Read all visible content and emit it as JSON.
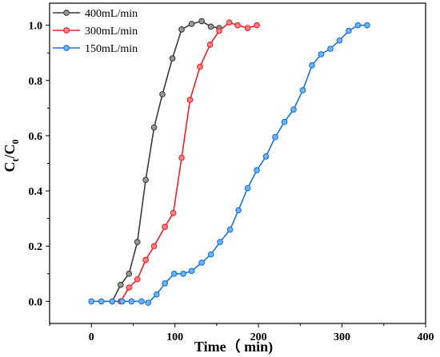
{
  "chart_data": {
    "type": "line",
    "title": "",
    "xlabel": "Time（ min)",
    "ylabel_main": "C",
    "ylabel_sub1": "t",
    "ylabel_mid": "/C",
    "ylabel_sub2": "0",
    "xlim": [
      -50,
      400
    ],
    "ylim": [
      -0.08,
      1.08
    ],
    "x_ticks": [
      0,
      100,
      200,
      300,
      400
    ],
    "y_ticks": [
      0.0,
      0.2,
      0.4,
      0.6,
      0.8,
      1.0
    ],
    "x_tick_labels": [
      "0",
      "100",
      "200",
      "300",
      "400"
    ],
    "y_tick_labels": [
      "0.0",
      "0.2",
      "0.4",
      "0.6",
      "0.8",
      "1.0"
    ],
    "grid": false,
    "legend_position": "top-left",
    "series": [
      {
        "name": "400mL/min",
        "color": "#3a3a3a",
        "fill": "#9a9a9a",
        "x": [
          25,
          35,
          45,
          55,
          65,
          75,
          85,
          97,
          108,
          120,
          132,
          143,
          153
        ],
        "y": [
          0.0,
          0.06,
          0.1,
          0.215,
          0.44,
          0.63,
          0.75,
          0.88,
          0.985,
          1.005,
          1.015,
          0.995,
          0.99
        ]
      },
      {
        "name": "300mL/min",
        "color": "#e8232a",
        "fill": "#ff8080",
        "x": [
          35,
          45,
          55,
          65,
          75,
          88,
          98,
          108,
          118,
          130,
          142,
          153,
          165,
          175,
          187,
          198
        ],
        "y": [
          0.0,
          0.05,
          0.08,
          0.15,
          0.2,
          0.27,
          0.32,
          0.52,
          0.73,
          0.85,
          0.93,
          0.98,
          1.01,
          1.0,
          0.99,
          1.0
        ]
      },
      {
        "name": "150mL/min",
        "color": "#1a73d9",
        "fill": "#6fb3ff",
        "x": [
          0,
          12,
          25,
          37,
          48,
          60,
          68,
          78,
          88,
          99,
          110,
          120,
          132,
          143,
          154,
          166,
          176,
          187,
          198,
          209,
          220,
          231,
          242,
          253,
          264,
          275,
          286,
          297,
          308,
          319,
          330
        ],
        "y": [
          0.0,
          0.0,
          0.0,
          0.0,
          0.0,
          0.0,
          -0.005,
          0.025,
          0.065,
          0.1,
          0.1,
          0.11,
          0.14,
          0.17,
          0.215,
          0.26,
          0.33,
          0.41,
          0.475,
          0.525,
          0.595,
          0.65,
          0.695,
          0.765,
          0.855,
          0.895,
          0.915,
          0.945,
          0.98,
          1.0,
          1.0
        ]
      }
    ]
  }
}
